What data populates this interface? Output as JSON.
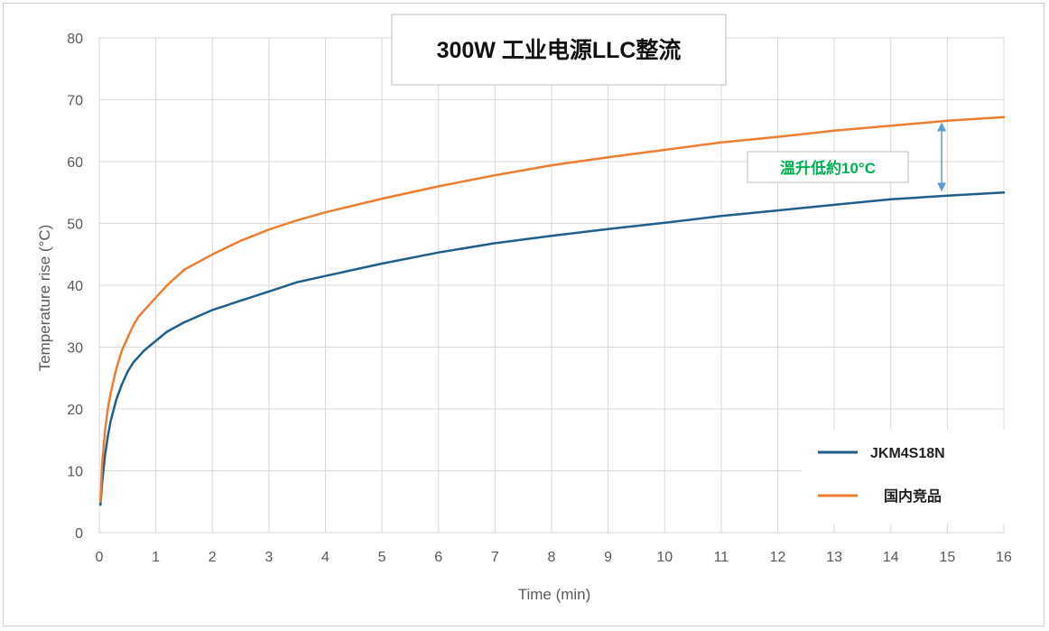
{
  "chart_data": {
    "type": "line",
    "title": "300W 工业电源LLC整流",
    "xlabel": "Time (min)",
    "ylabel": "Temperature rise (°C)",
    "xlim": [
      0,
      16
    ],
    "ylim": [
      0,
      80
    ],
    "x_ticks": [
      0,
      1,
      2,
      3,
      4,
      5,
      6,
      7,
      8,
      9,
      10,
      11,
      12,
      13,
      14,
      15,
      16
    ],
    "y_ticks": [
      0,
      10,
      20,
      30,
      40,
      50,
      60,
      70,
      80
    ],
    "grid": true,
    "legend_position": "bottom-right",
    "annotation": {
      "text": "溫升低約10°C",
      "color": "#00b050",
      "x": 14.9,
      "y_from": 55,
      "y_to": 66.5
    },
    "series": [
      {
        "name": "JKM4S18N",
        "color": "#1f5f8b",
        "x": [
          0.02,
          0.05,
          0.1,
          0.15,
          0.2,
          0.3,
          0.4,
          0.5,
          0.6,
          0.7,
          0.8,
          1.0,
          1.2,
          1.5,
          2,
          2.5,
          3,
          3.5,
          4,
          5,
          6,
          7,
          8,
          9,
          10,
          11,
          12,
          13,
          14,
          15,
          16
        ],
        "values": [
          4.5,
          8,
          12.5,
          15.5,
          18,
          21.5,
          24,
          26,
          27.5,
          28.5,
          29.5,
          31,
          32.5,
          34,
          36,
          37.5,
          39,
          40.5,
          41.5,
          43.5,
          45.3,
          46.8,
          48,
          49.1,
          50.1,
          51.2,
          52.1,
          53,
          53.9,
          54.5,
          55
        ]
      },
      {
        "name": "国内竞品",
        "color": "#ed7d31",
        "x": [
          0.02,
          0.05,
          0.1,
          0.15,
          0.2,
          0.3,
          0.4,
          0.5,
          0.6,
          0.7,
          0.8,
          1.0,
          1.2,
          1.5,
          2,
          2.5,
          3,
          3.5,
          4,
          5,
          6,
          7,
          8,
          9,
          10,
          11,
          12,
          13,
          14,
          15,
          16
        ],
        "values": [
          5,
          11,
          16.5,
          20,
          22.5,
          26.5,
          29.5,
          31.5,
          33.5,
          35,
          36,
          38,
          40,
          42.5,
          45,
          47.2,
          49,
          50.5,
          51.8,
          54,
          56,
          57.8,
          59.4,
          60.7,
          61.9,
          63.1,
          64,
          65,
          65.8,
          66.6,
          67.2
        ]
      }
    ]
  }
}
